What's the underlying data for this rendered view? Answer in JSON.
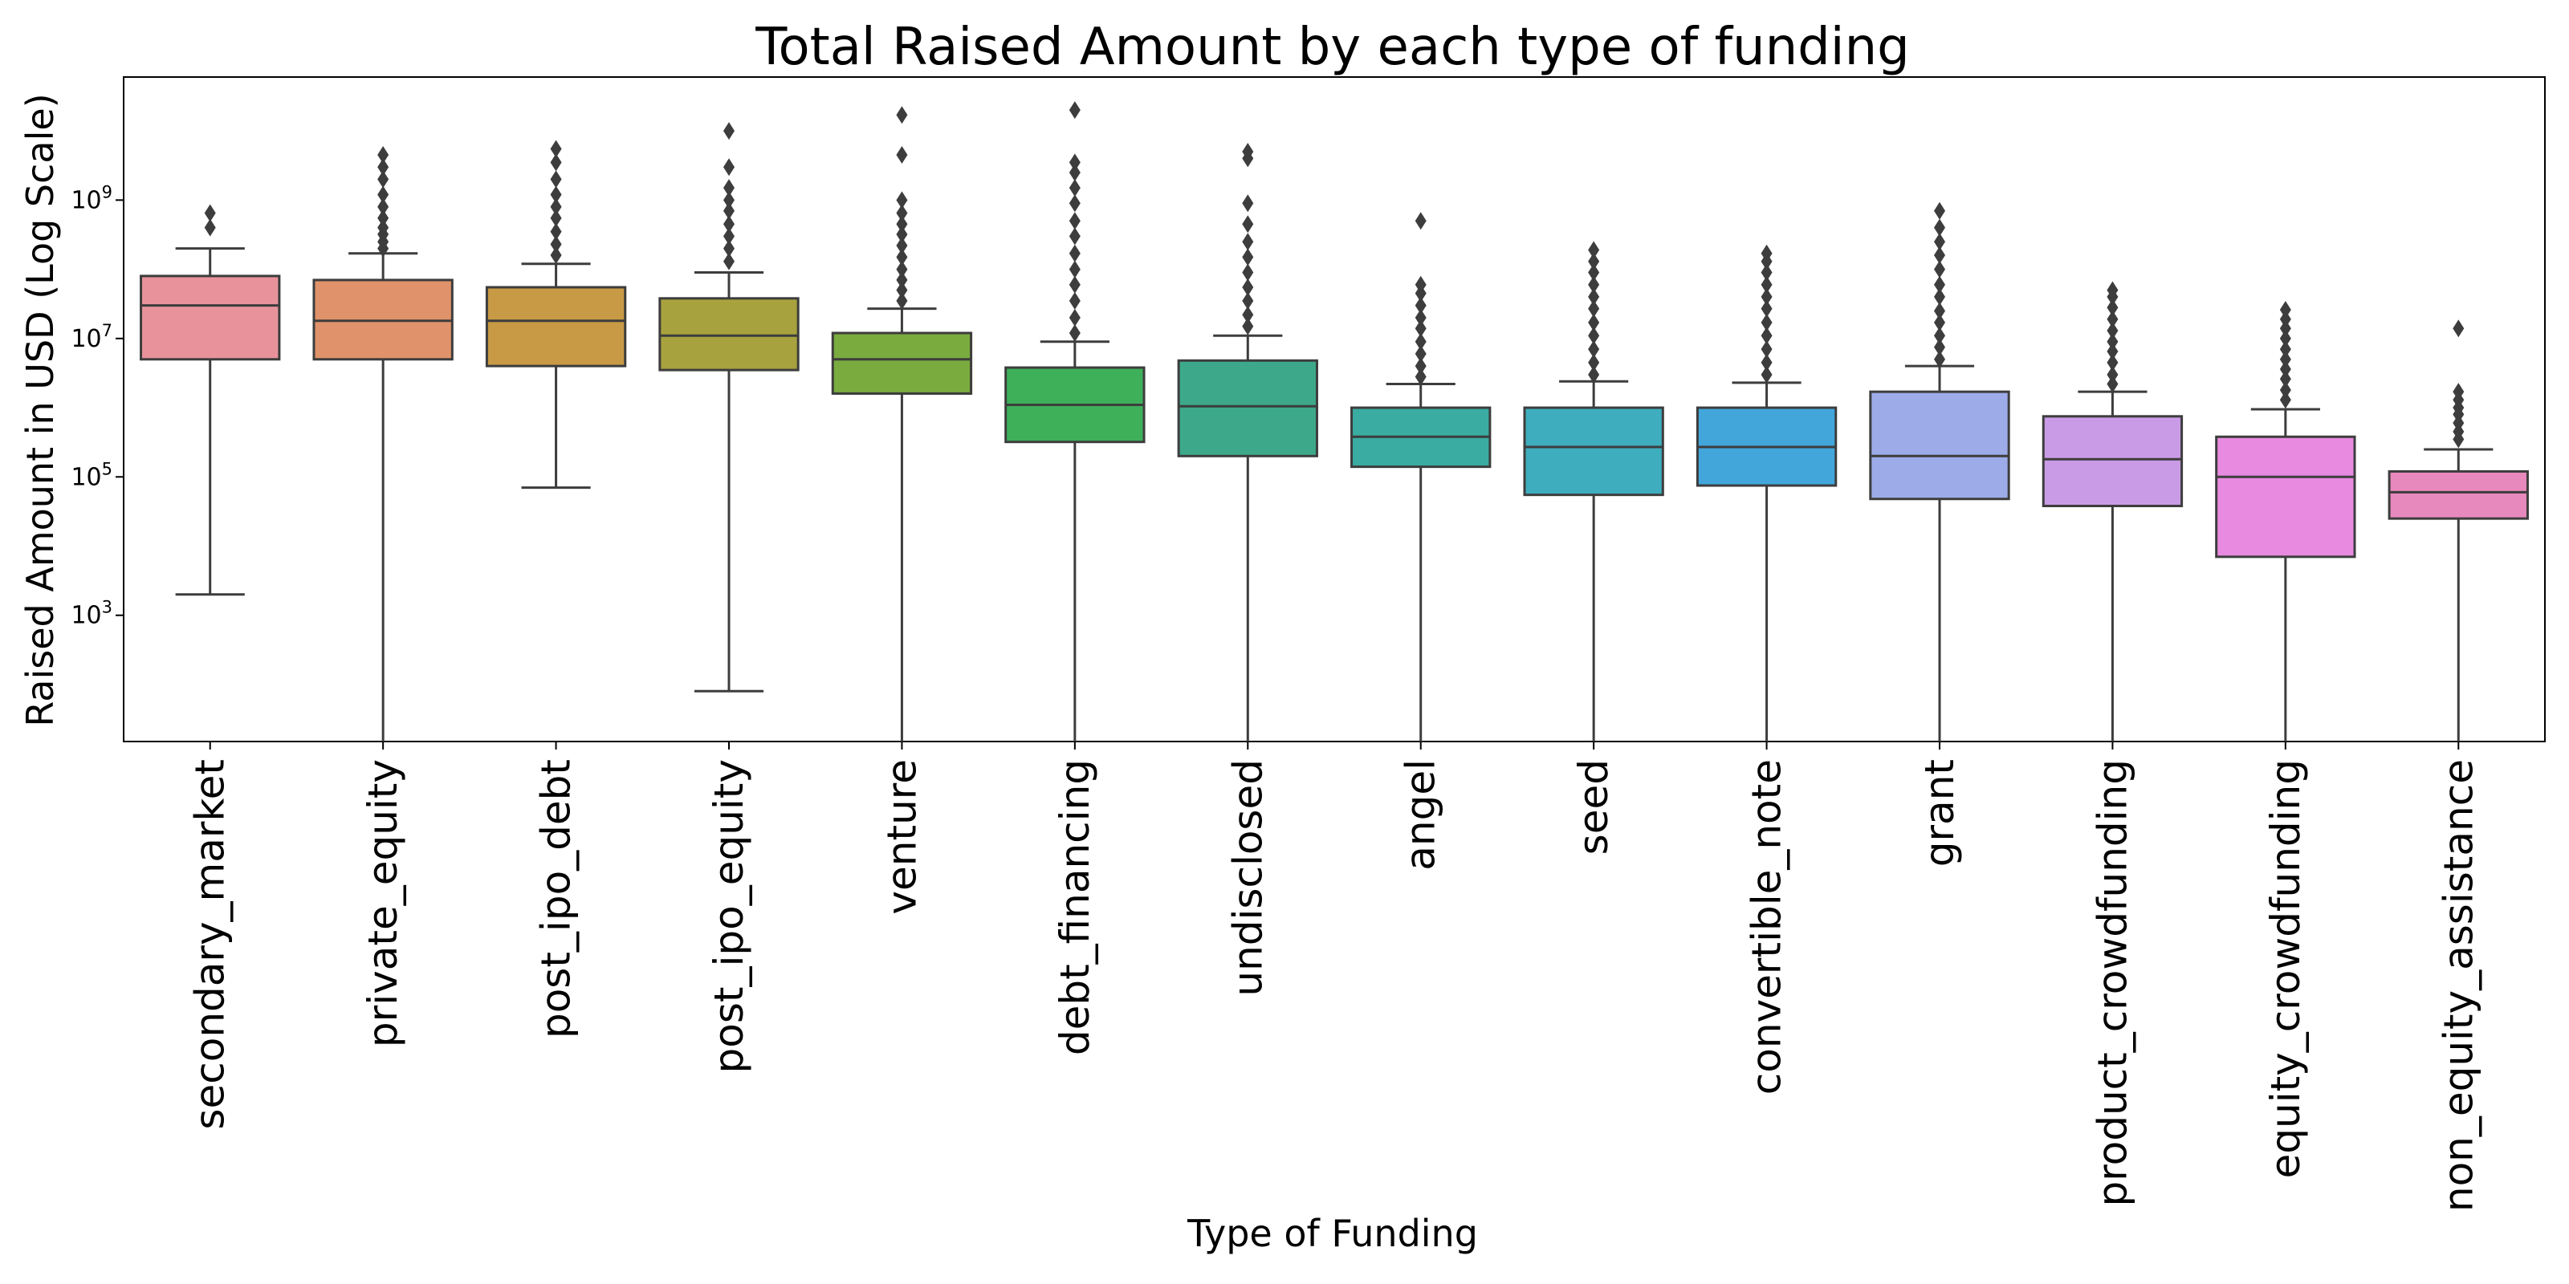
{
  "chart_data": {
    "type": "box",
    "title": "Total Raised Amount by each type of funding",
    "xlabel": "Type of Funding",
    "ylabel": "Raised Amount in USD (Log Scale)",
    "y_scale": "log",
    "ylim": [
      15,
      60000000000
    ],
    "y_ticks": [
      {
        "value": 1000,
        "base": "10",
        "exp": "3"
      },
      {
        "value": 100000,
        "base": "10",
        "exp": "5"
      },
      {
        "value": 10000000,
        "base": "10",
        "exp": "7"
      },
      {
        "value": 1000000000,
        "base": "10",
        "exp": "9"
      }
    ],
    "grid": false,
    "series": [
      {
        "category": "secondary_market",
        "color": "#e8939c",
        "whisker_low": 2000,
        "q1": 5000000,
        "median": 30000000,
        "q3": 80000000,
        "whisker_high": 200000000,
        "outliers": [
          400000000,
          650000000
        ]
      },
      {
        "category": "private_equity",
        "color": "#e0936a",
        "whisker_low": 15,
        "q1": 5000000,
        "median": 18000000,
        "q3": 70000000,
        "whisker_high": 170000000,
        "outliers": [
          200000000,
          250000000,
          320000000,
          400000000,
          550000000,
          800000000,
          1200000000,
          2000000000,
          3000000000,
          4500000000
        ]
      },
      {
        "category": "post_ipo_debt",
        "color": "#c89a45",
        "whisker_low": 70000,
        "q1": 4000000,
        "median": 18000000,
        "q3": 55000000,
        "whisker_high": 120000000,
        "outliers": [
          160000000,
          230000000,
          350000000,
          550000000,
          800000000,
          1200000000,
          2000000000,
          3500000000,
          5500000000
        ]
      },
      {
        "category": "post_ipo_equity",
        "color": "#a8a23e",
        "whisker_low": 80,
        "q1": 3500000,
        "median": 11000000,
        "q3": 38000000,
        "whisker_high": 90000000,
        "outliers": [
          130000000,
          200000000,
          300000000,
          450000000,
          700000000,
          1000000000,
          1500000000,
          3000000000,
          10000000000
        ]
      },
      {
        "category": "venture",
        "color": "#7aab3f",
        "whisker_low": 15,
        "q1": 1600000,
        "median": 5000000,
        "q3": 12000000,
        "whisker_high": 27000000,
        "outliers": [
          35000000,
          50000000,
          70000000,
          100000000,
          150000000,
          220000000,
          320000000,
          450000000,
          650000000,
          1000000000,
          4500000000,
          17000000000
        ]
      },
      {
        "category": "debt_financing",
        "color": "#3eb05a",
        "whisker_low": 15,
        "q1": 320000,
        "median": 1100000,
        "q3": 3800000,
        "whisker_high": 9000000,
        "outliers": [
          12000000,
          20000000,
          35000000,
          60000000,
          100000000,
          170000000,
          300000000,
          500000000,
          900000000,
          1500000000,
          2500000000,
          3500000000,
          20000000000
        ]
      },
      {
        "category": "undisclosed",
        "color": "#3da98a",
        "whisker_low": 15,
        "q1": 200000,
        "median": 1050000,
        "q3": 4800000,
        "whisker_high": 11000000,
        "outliers": [
          15000000,
          22000000,
          35000000,
          55000000,
          90000000,
          150000000,
          250000000,
          450000000,
          900000000,
          4000000000,
          5000000000
        ]
      },
      {
        "category": "angel",
        "color": "#3aaca2",
        "whisker_low": 15,
        "q1": 140000,
        "median": 380000,
        "q3": 1000000,
        "whisker_high": 2200000,
        "outliers": [
          2800000,
          4000000,
          6000000,
          9000000,
          14000000,
          20000000,
          30000000,
          45000000,
          60000000,
          500000000
        ]
      },
      {
        "category": "seed",
        "color": "#3eadbe",
        "whisker_low": 15,
        "q1": 55000,
        "median": 270000,
        "q3": 1000000,
        "whisker_high": 2400000,
        "outliers": [
          3000000,
          4500000,
          7000000,
          11000000,
          17000000,
          27000000,
          40000000,
          60000000,
          90000000,
          130000000,
          190000000
        ]
      },
      {
        "category": "convertible_note",
        "color": "#42a6db",
        "whisker_low": 15,
        "q1": 75000,
        "median": 270000,
        "q3": 1000000,
        "whisker_high": 2300000,
        "outliers": [
          3000000,
          4500000,
          7000000,
          11000000,
          17000000,
          27000000,
          40000000,
          60000000,
          90000000,
          130000000,
          170000000
        ]
      },
      {
        "category": "grant",
        "color": "#9dabe8",
        "whisker_low": 15,
        "q1": 48000,
        "median": 200000,
        "q3": 1700000,
        "whisker_high": 4000000,
        "outliers": [
          5000000,
          7500000,
          11000000,
          17000000,
          25000000,
          40000000,
          60000000,
          100000000,
          160000000,
          250000000,
          400000000,
          700000000
        ]
      },
      {
        "category": "product_crowdfunding",
        "color": "#c99be6",
        "whisker_low": 15,
        "q1": 38000,
        "median": 180000,
        "q3": 750000,
        "whisker_high": 1700000,
        "outliers": [
          2200000,
          3000000,
          4500000,
          6500000,
          9000000,
          13000000,
          19000000,
          28000000,
          40000000,
          50000000
        ]
      },
      {
        "category": "equity_crowdfunding",
        "color": "#e88ae0",
        "whisker_low": 15,
        "q1": 7000,
        "median": 100000,
        "q3": 380000,
        "whisker_high": 950000,
        "outliers": [
          1300000,
          1800000,
          2600000,
          3600000,
          5000000,
          7000000,
          10000000,
          14000000,
          19000000,
          26000000
        ]
      },
      {
        "category": "non_equity_assistance",
        "color": "#e889bd",
        "whisker_low": 15,
        "q1": 25000,
        "median": 60000,
        "q3": 120000,
        "whisker_high": 250000,
        "outliers": [
          350000,
          450000,
          600000,
          800000,
          1000000,
          1300000,
          1700000,
          14000000
        ]
      }
    ]
  }
}
